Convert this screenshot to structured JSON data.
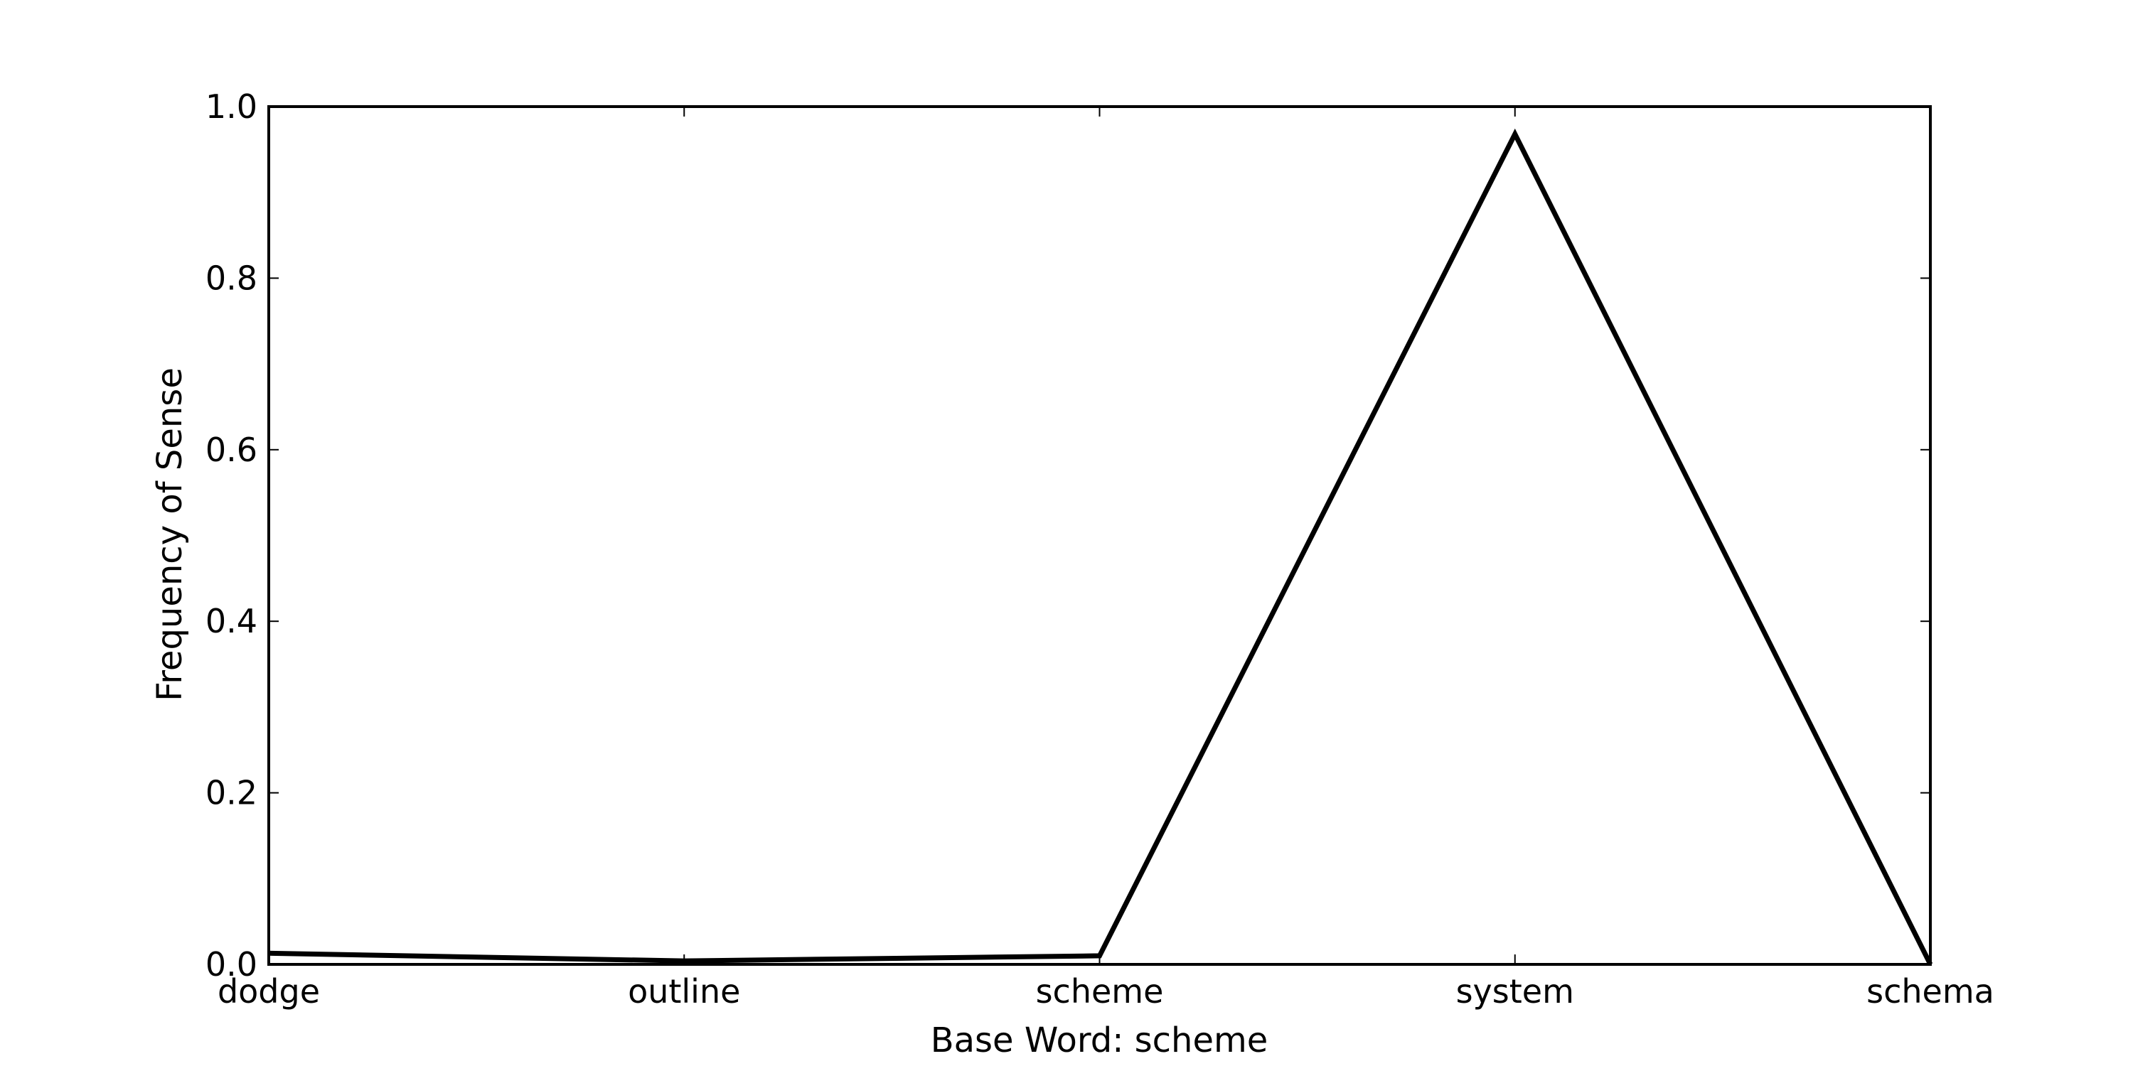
{
  "chart_data": {
    "type": "line",
    "categories": [
      "dodge",
      "outline",
      "scheme",
      "system",
      "schema"
    ],
    "values": [
      0.013,
      0.004,
      0.01,
      0.968,
      0.0
    ],
    "xlabel": "Base Word: scheme",
    "ylabel": "Frequency of Sense",
    "ylim": [
      0.0,
      1.0
    ],
    "yticks": [
      "0.0",
      "0.2",
      "0.4",
      "0.6",
      "0.8",
      "1.0"
    ],
    "line_color": "#000000",
    "grid": false,
    "legend": "none"
  }
}
